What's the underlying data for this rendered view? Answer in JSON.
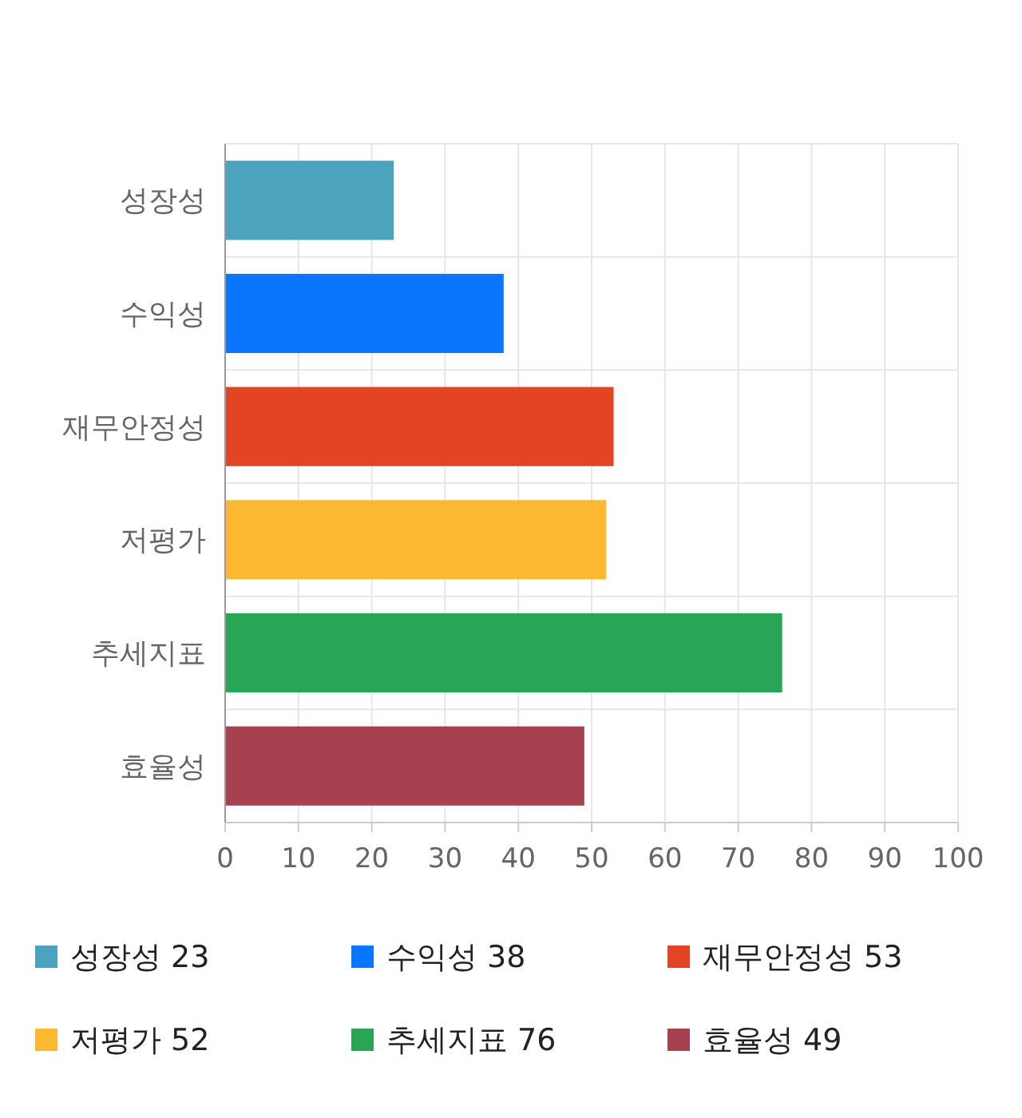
{
  "chart_data": {
    "type": "bar",
    "orientation": "horizontal",
    "stacked": true,
    "categories": [
      "성장성",
      "수익성",
      "재무안정성",
      "저평가",
      "추세지표",
      "효율성"
    ],
    "series": [
      {
        "name": "성장성 23",
        "color": "#4ba3bd",
        "values": [
          23,
          null,
          null,
          null,
          null,
          null
        ]
      },
      {
        "name": "수익성 38",
        "color": "#0a76fe",
        "values": [
          null,
          38,
          null,
          null,
          null,
          null
        ]
      },
      {
        "name": "재무안정성 53",
        "color": "#e34524",
        "values": [
          null,
          null,
          53,
          null,
          null,
          null
        ]
      },
      {
        "name": "저평가 52",
        "color": "#fdb831",
        "values": [
          null,
          null,
          null,
          52,
          null,
          null
        ]
      },
      {
        "name": "추세지표 76",
        "color": "#28a655",
        "values": [
          null,
          null,
          null,
          null,
          76,
          null
        ]
      },
      {
        "name": "효율성 49",
        "color": "#a7404f",
        "values": [
          null,
          null,
          null,
          null,
          null,
          49
        ]
      }
    ],
    "xlim": [
      0,
      100
    ],
    "xticks": [
      0,
      10,
      20,
      30,
      40,
      50,
      60,
      70,
      80,
      90,
      100
    ],
    "grid": true,
    "legend": "bottom"
  }
}
